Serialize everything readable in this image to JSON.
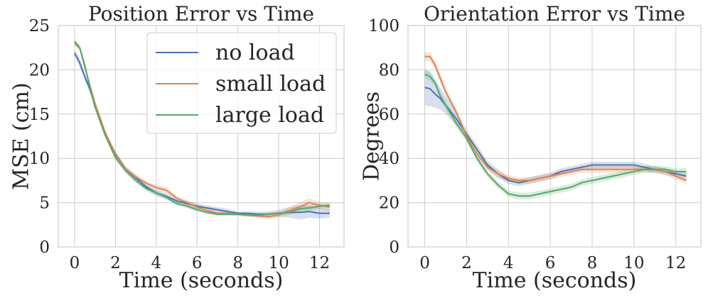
{
  "colors": {
    "no load": "#4c72b0",
    "small load": "#dd8452",
    "large load": "#55a868"
  },
  "chart_data": [
    {
      "type": "line",
      "title": "Position Error vs Time",
      "xlabel": "Time (seconds)",
      "ylabel": "MSE (cm)",
      "xlim": [
        -0.8,
        13.2
      ],
      "ylim": [
        0,
        25
      ],
      "xticks": [
        0,
        2,
        4,
        6,
        8,
        10,
        12
      ],
      "yticks": [
        0,
        5,
        10,
        15,
        20,
        25
      ],
      "grid": true,
      "legend": "top-right",
      "series": [
        {
          "name": "no load",
          "x": [
            0,
            0.25,
            0.5,
            0.75,
            1,
            1.5,
            2,
            2.5,
            3,
            3.5,
            4,
            4.5,
            5,
            5.5,
            6,
            6.5,
            7,
            7.5,
            8,
            8.5,
            9,
            9.5,
            10,
            10.5,
            11,
            11.5,
            12,
            12.5
          ],
          "y": [
            21.9,
            20.8,
            19.2,
            17.8,
            16.0,
            12.8,
            10.5,
            8.8,
            7.8,
            6.8,
            6.1,
            5.7,
            5.2,
            4.9,
            4.6,
            4.4,
            4.2,
            4.0,
            3.8,
            3.8,
            3.7,
            3.7,
            3.8,
            3.9,
            3.9,
            4.0,
            3.8,
            3.8
          ],
          "band": [
            0.4,
            0.5,
            0.4,
            0.4,
            0.3,
            0.3,
            0.3,
            0.3,
            0.3,
            0.3,
            0.3,
            0.3,
            0.3,
            0.3,
            0.3,
            0.3,
            0.3,
            0.3,
            0.2,
            0.2,
            0.3,
            0.3,
            0.4,
            0.6,
            0.8,
            0.7,
            0.6,
            0.5
          ]
        },
        {
          "name": "small load",
          "x": [
            0,
            0.25,
            0.5,
            0.75,
            1,
            1.5,
            2,
            2.5,
            3,
            3.5,
            4,
            4.5,
            5,
            5.5,
            6,
            6.5,
            7,
            7.5,
            8,
            8.5,
            9,
            9.5,
            10,
            10.5,
            11,
            11.5,
            12,
            12.5
          ],
          "y": [
            23.0,
            22.5,
            20.3,
            18.2,
            16.2,
            12.9,
            10.4,
            8.8,
            7.9,
            7.2,
            6.7,
            6.4,
            5.5,
            5.0,
            4.5,
            4.1,
            3.8,
            3.8,
            3.7,
            3.6,
            3.5,
            3.4,
            3.6,
            4.1,
            4.5,
            5.0,
            4.7,
            4.5
          ],
          "band": [
            0.3,
            0.3,
            0.3,
            0.3,
            0.3,
            0.3,
            0.3,
            0.3,
            0.3,
            0.3,
            0.3,
            0.4,
            0.3,
            0.3,
            0.3,
            0.3,
            0.2,
            0.2,
            0.2,
            0.2,
            0.2,
            0.3,
            0.3,
            0.4,
            0.5,
            0.5,
            0.4,
            0.4
          ]
        },
        {
          "name": "large load",
          "x": [
            0,
            0.25,
            0.5,
            0.75,
            1,
            1.5,
            2,
            2.5,
            3,
            3.5,
            4,
            4.5,
            5,
            5.5,
            6,
            6.5,
            7,
            7.5,
            8,
            8.5,
            9,
            9.5,
            10,
            10.5,
            11,
            11.5,
            12,
            12.5
          ],
          "y": [
            23.2,
            22.5,
            20.5,
            18.0,
            15.8,
            12.6,
            10.1,
            8.6,
            7.5,
            6.6,
            6.1,
            5.6,
            4.9,
            4.6,
            4.2,
            3.9,
            3.7,
            3.7,
            3.7,
            3.6,
            3.6,
            3.7,
            3.8,
            3.9,
            4.3,
            4.4,
            4.6,
            4.7
          ],
          "band": [
            0.3,
            0.3,
            0.3,
            0.3,
            0.3,
            0.3,
            0.3,
            0.3,
            0.3,
            0.3,
            0.3,
            0.3,
            0.2,
            0.2,
            0.2,
            0.2,
            0.2,
            0.2,
            0.2,
            0.2,
            0.2,
            0.2,
            0.2,
            0.3,
            0.3,
            0.3,
            0.3,
            0.3
          ]
        }
      ]
    },
    {
      "type": "line",
      "title": "Orientation Error vs Time",
      "xlabel": "Time (seconds)",
      "ylabel": "Degrees",
      "xlim": [
        -0.8,
        13.2
      ],
      "ylim": [
        0,
        100
      ],
      "xticks": [
        0,
        2,
        4,
        6,
        8,
        10,
        12
      ],
      "yticks": [
        0,
        20,
        40,
        60,
        80,
        100
      ],
      "grid": true,
      "series": [
        {
          "name": "no load",
          "x": [
            0,
            0.25,
            0.5,
            0.75,
            1,
            1.5,
            2,
            2.5,
            3,
            3.5,
            4,
            4.5,
            5,
            5.5,
            6,
            6.5,
            7,
            7.5,
            8,
            8.5,
            9,
            9.5,
            10,
            10.5,
            11,
            11.5,
            12,
            12.5
          ],
          "y": [
            72,
            71.5,
            69,
            67,
            64,
            58,
            51,
            44,
            37,
            33,
            30,
            29,
            30,
            31,
            32,
            34,
            35,
            36,
            37,
            37,
            37,
            37,
            37,
            36,
            35,
            34,
            33,
            32
          ],
          "band": [
            8,
            8,
            6,
            5,
            4,
            3,
            2,
            2,
            2,
            2,
            1.5,
            1.5,
            1.5,
            1.5,
            1.5,
            1.5,
            1.5,
            1.5,
            1.5,
            1.5,
            1.5,
            1.5,
            1.5,
            1.5,
            1.5,
            1.5,
            1.5,
            1.5
          ]
        },
        {
          "name": "small load",
          "x": [
            0,
            0.25,
            0.5,
            0.75,
            1,
            1.5,
            2,
            2.5,
            3,
            3.5,
            4,
            4.5,
            5,
            5.5,
            6,
            6.5,
            7,
            7.5,
            8,
            8.5,
            9,
            9.5,
            10,
            10.5,
            11,
            11.5,
            12,
            12.5
          ],
          "y": [
            86,
            86,
            82,
            76,
            70,
            61,
            50,
            42,
            36,
            33,
            31,
            30,
            30,
            31,
            32,
            33,
            34,
            35,
            35,
            35,
            35,
            35,
            35,
            35,
            35,
            34,
            32,
            30
          ],
          "band": [
            2,
            2,
            2,
            2,
            2,
            1.5,
            1.5,
            1.5,
            1.5,
            1.5,
            1.5,
            1.5,
            1.5,
            1.5,
            1.5,
            1.5,
            1.5,
            1.5,
            1.5,
            1.5,
            1.5,
            1.5,
            1.5,
            1.5,
            1.5,
            1.5,
            1.5,
            1.5
          ]
        },
        {
          "name": "large load",
          "x": [
            0,
            0.25,
            0.5,
            0.75,
            1,
            1.5,
            2,
            2.5,
            3,
            3.5,
            4,
            4.5,
            5,
            5.5,
            6,
            6.5,
            7,
            7.5,
            8,
            8.5,
            9,
            9.5,
            10,
            10.5,
            11,
            11.5,
            12,
            12.5
          ],
          "y": [
            78,
            77,
            74,
            68,
            64,
            56,
            49,
            40,
            33,
            28,
            24,
            23,
            23,
            24,
            25,
            26,
            27,
            29,
            30,
            31,
            32,
            33,
            34,
            35,
            35,
            35,
            34,
            34
          ],
          "band": [
            2,
            2,
            2,
            2,
            2,
            2,
            1.5,
            1.5,
            1.5,
            1.5,
            1.5,
            1.5,
            1.5,
            1.5,
            1.5,
            1.5,
            1.5,
            1.5,
            1.5,
            1.5,
            1.5,
            1.5,
            1.5,
            1.5,
            1.5,
            1.5,
            1.5,
            1.5
          ]
        }
      ]
    }
  ]
}
